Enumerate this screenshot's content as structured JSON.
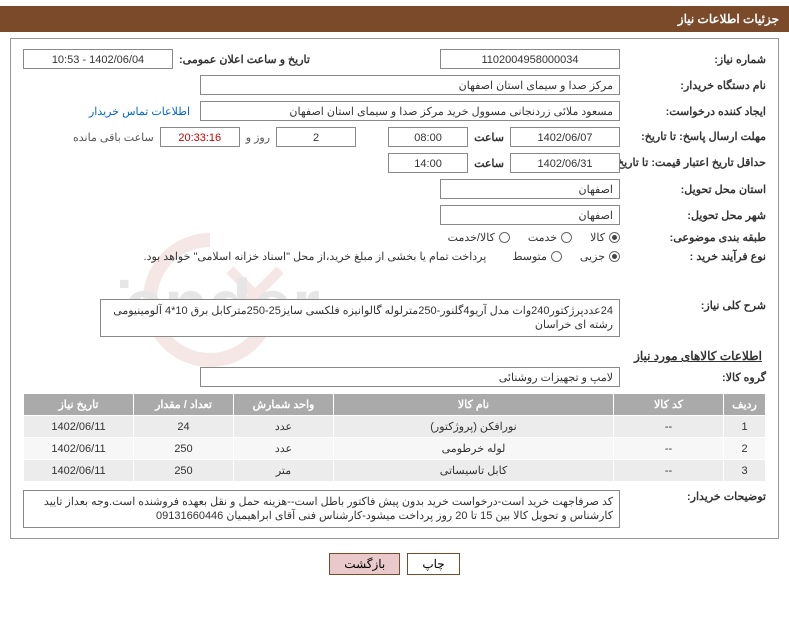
{
  "header": {
    "title": "جزئیات اطلاعات نیاز"
  },
  "fields": {
    "need_no_label": "شماره نیاز:",
    "need_no": "1102004958000034",
    "announce_label": "تاریخ و ساعت اعلان عمومی:",
    "announce_value": "1402/06/04 - 10:53",
    "buyer_org_label": "نام دستگاه خریدار:",
    "buyer_org": "مرکز صدا و سیمای استان اصفهان",
    "requester_label": "ایجاد کننده درخواست:",
    "requester": "مسعود ملائی زردنجانی مسوول خرید مرکز صدا و سیمای استان اصفهان",
    "contact_link": "اطلاعات تماس خریدار",
    "reply_deadline_label": "مهلت ارسال پاسخ: تا تاریخ:",
    "reply_date": "1402/06/07",
    "time_lbl": "ساعت",
    "reply_time": "08:00",
    "days_count": "2",
    "days_word": "روز و",
    "countdown": "20:33:16",
    "remaining": "ساعت باقی مانده",
    "validity_label": "حداقل تاریخ اعتبار قیمت: تا تاریخ:",
    "validity_date": "1402/06/31",
    "validity_time": "14:00",
    "province_label": "استان محل تحویل:",
    "province": "اصفهان",
    "city_label": "شهر محل تحویل:",
    "city": "اصفهان",
    "category_label": "طبقه بندی موضوعی:",
    "cat_goods": "کالا",
    "cat_service": "خدمت",
    "cat_both": "کالا/خدمت",
    "process_label": "نوع فرآیند خرید :",
    "proc_minor": "جزیی",
    "proc_medium": "متوسط",
    "proc_note": "پرداخت تمام یا بخشی از مبلغ خرید،از محل \"اسناد خزانه اسلامی\" خواهد بود."
  },
  "overview": {
    "label": "شرح کلی نیاز:",
    "text": "24عددپرژکتور240وات مدل آریو4گلنور-250مترلوله گالوانیزه فلکسی سایز25-250مترکابل برق 10*4 آلومینیومی رشته ای خراسان"
  },
  "goods": {
    "section_title": "اطلاعات کالاهای مورد نیاز",
    "group_label": "گروه کالا:",
    "group_value": "لامپ و تجهیزات روشنائی",
    "headers": {
      "idx": "ردیف",
      "code": "کد کالا",
      "name": "نام کالا",
      "unit": "واحد شمارش",
      "qty": "تعداد / مقدار",
      "date": "تاریخ نیاز"
    },
    "rows": [
      {
        "idx": "1",
        "code": "--",
        "name": "نورافکن (پروژکتور)",
        "unit": "عدد",
        "qty": "24",
        "date": "1402/06/11"
      },
      {
        "idx": "2",
        "code": "--",
        "name": "لوله خرطومی",
        "unit": "عدد",
        "qty": "250",
        "date": "1402/06/11"
      },
      {
        "idx": "3",
        "code": "--",
        "name": "کابل تاسیساتی",
        "unit": "متر",
        "qty": "250",
        "date": "1402/06/11"
      }
    ]
  },
  "buyer_note": {
    "label": "توضیحات خریدار:",
    "text": "کد صرفاجهت خرید است-درخواست خرید بدون پیش فاکتور باطل است--هزینه حمل و نقل بعهده فروشنده است.وجه بعداز تایید  کارشناس و تحویل کالا بین 15 تا 20 روز پرداخت میشود-کارشناس فنی آقای ابراهیمیان 09131660446"
  },
  "buttons": {
    "print": "چاپ",
    "back": "بازگشت"
  },
  "colors": {
    "brand": "#7a4a2a",
    "border": "#888888",
    "th_bg": "#aaaaaa",
    "row_odd": "#ececec",
    "row_even": "#f7f7f7",
    "link": "#0066cc"
  }
}
